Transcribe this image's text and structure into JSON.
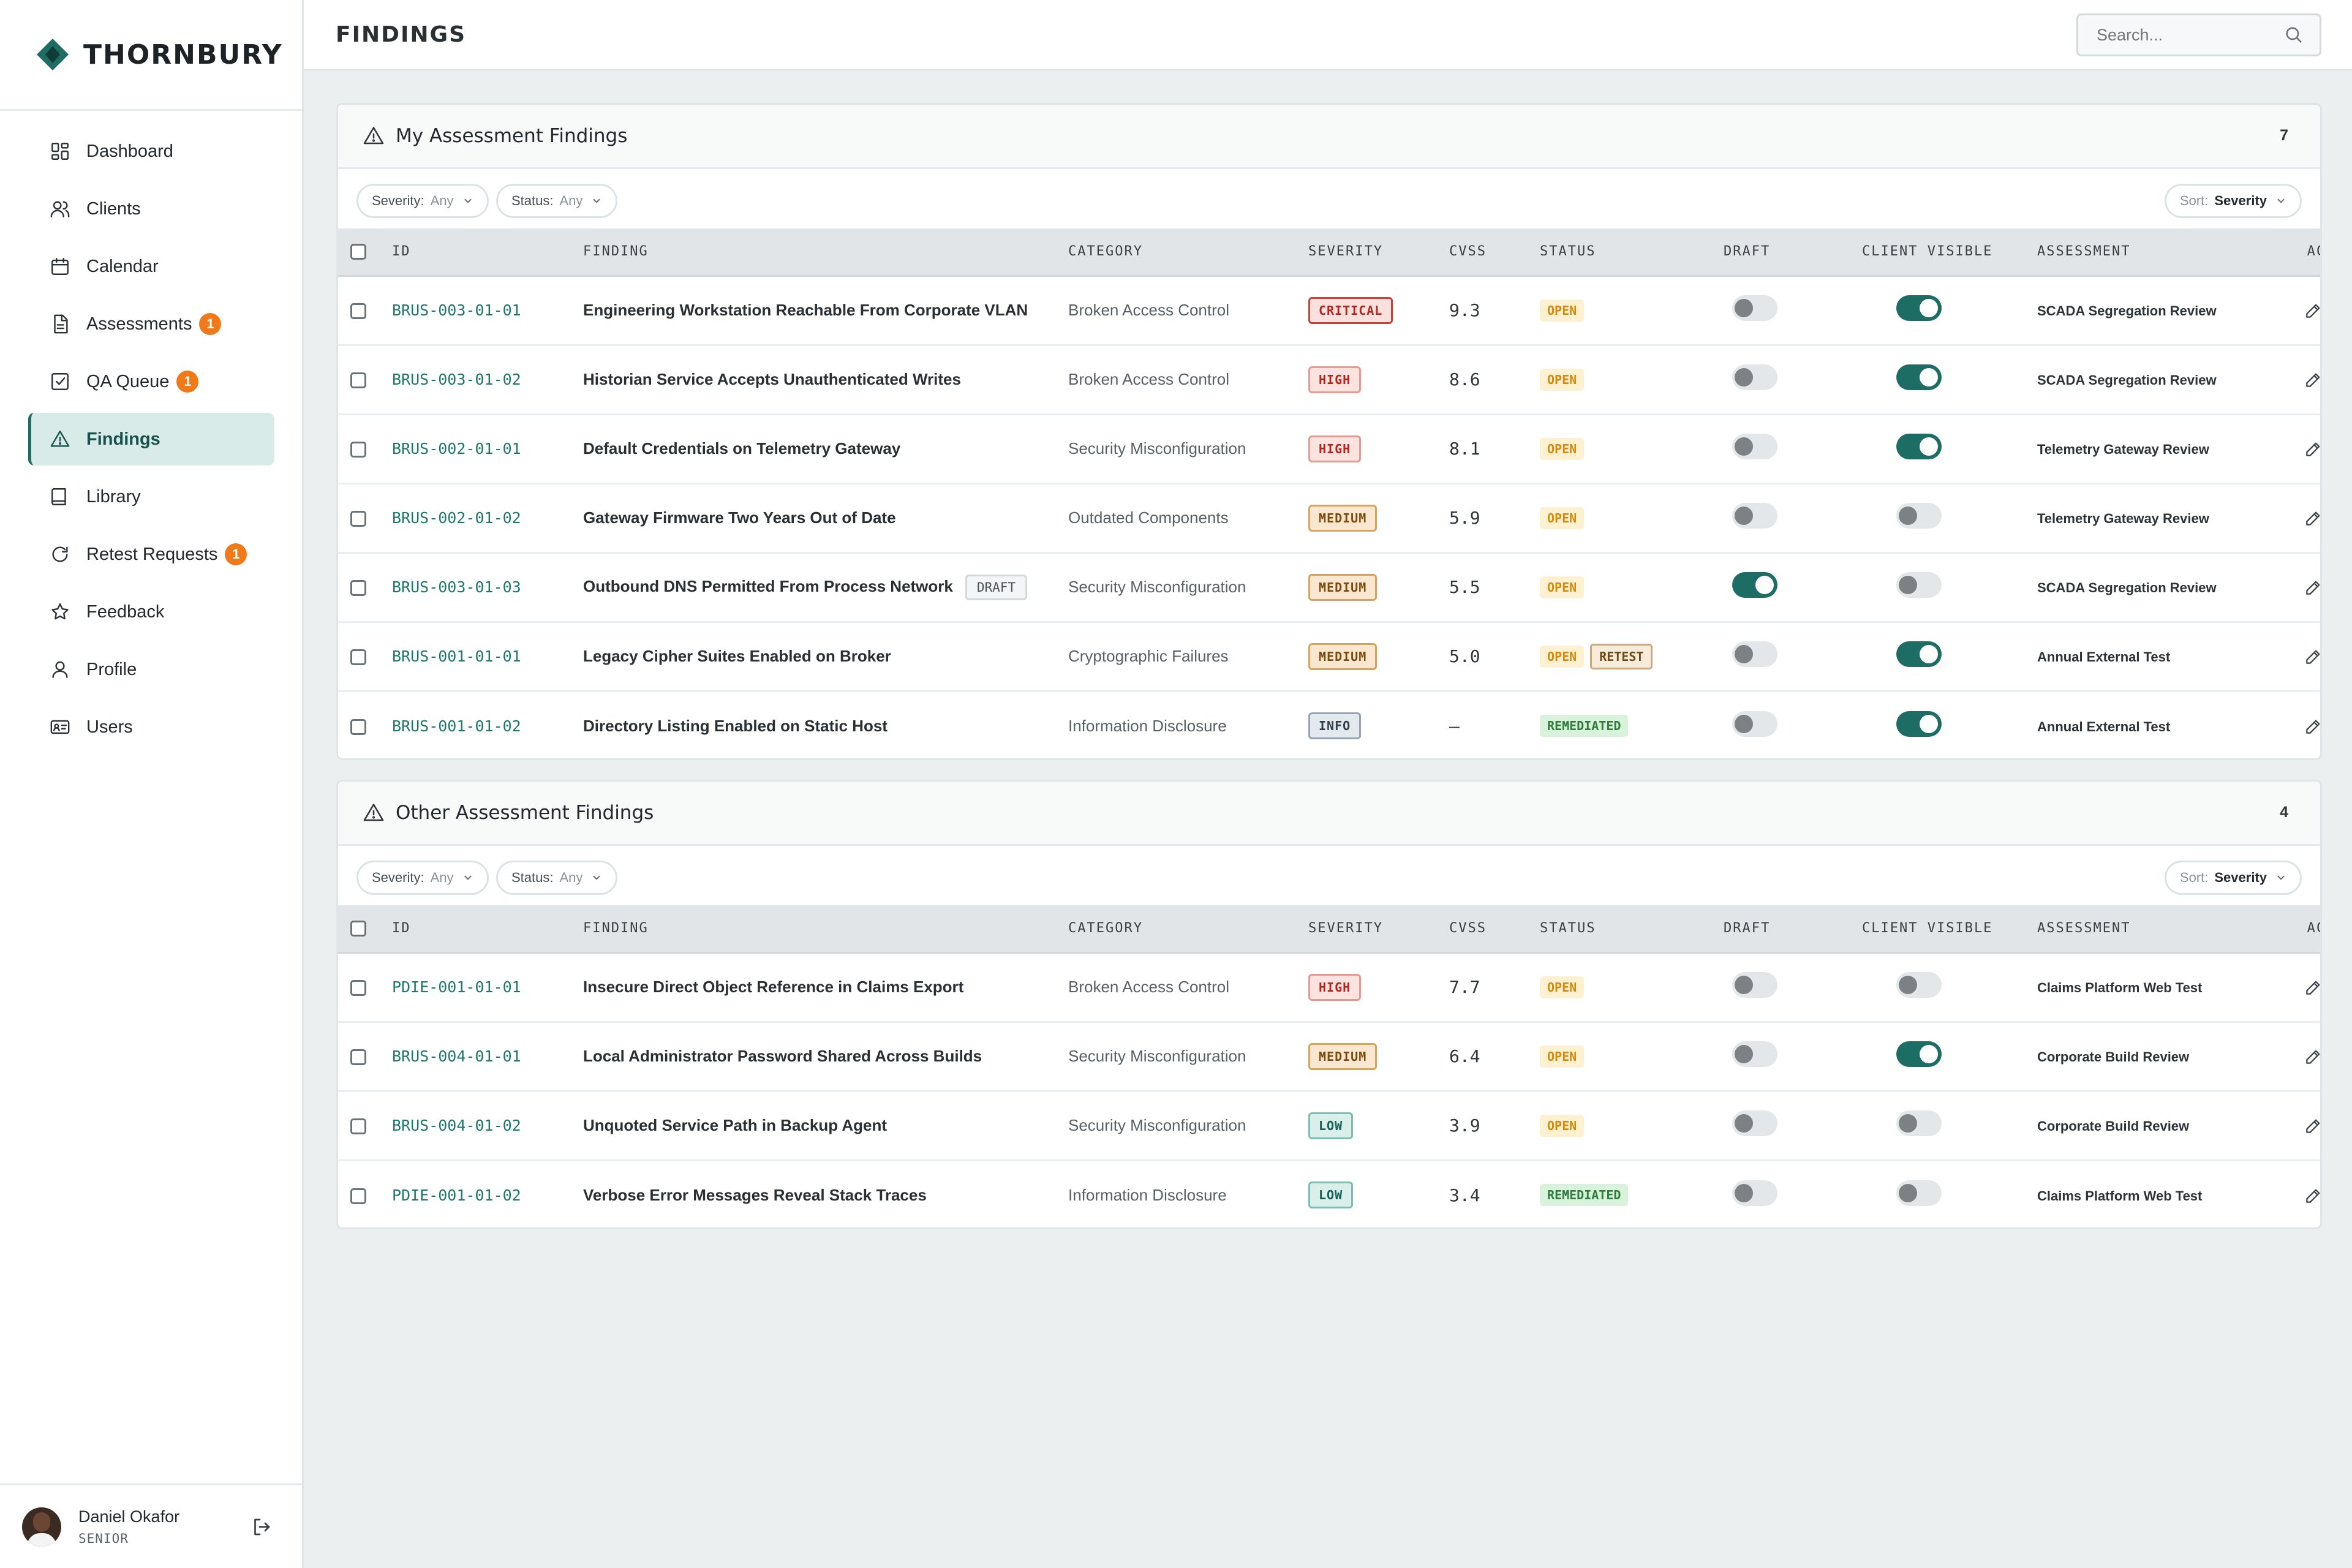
{
  "brand": {
    "name": "THORNBURY"
  },
  "nav": [
    {
      "key": "dashboard",
      "label": "Dashboard",
      "icon": "dashboard-icon",
      "badge": null,
      "active": false
    },
    {
      "key": "clients",
      "label": "Clients",
      "icon": "users-icon",
      "badge": null,
      "active": false
    },
    {
      "key": "calendar",
      "label": "Calendar",
      "icon": "calendar-icon",
      "badge": null,
      "active": false
    },
    {
      "key": "assessments",
      "label": "Assessments",
      "icon": "document-icon",
      "badge": "1",
      "active": false
    },
    {
      "key": "qa-queue",
      "label": "QA Queue",
      "icon": "checklist-icon",
      "badge": "1",
      "active": false
    },
    {
      "key": "findings",
      "label": "Findings",
      "icon": "warning-icon",
      "badge": null,
      "active": true
    },
    {
      "key": "library",
      "label": "Library",
      "icon": "book-icon",
      "badge": null,
      "active": false
    },
    {
      "key": "retest-requests",
      "label": "Retest Requests",
      "icon": "refresh-icon",
      "badge": "1",
      "active": false
    },
    {
      "key": "feedback",
      "label": "Feedback",
      "icon": "star-icon",
      "badge": null,
      "active": false
    },
    {
      "key": "profile",
      "label": "Profile",
      "icon": "person-icon",
      "badge": null,
      "active": false
    },
    {
      "key": "users",
      "label": "Users",
      "icon": "id-card-icon",
      "badge": null,
      "active": false
    }
  ],
  "user": {
    "name": "Daniel Okafor",
    "role": "SENIOR"
  },
  "header": {
    "title": "FINDINGS",
    "search_placeholder": "Search..."
  },
  "columns": [
    "ID",
    "FINDING",
    "CATEGORY",
    "SEVERITY",
    "CVSS",
    "STATUS",
    "DRAFT",
    "CLIENT VISIBLE",
    "ASSESSMENT",
    "ACTIONS"
  ],
  "filters": {
    "severity_label": "Severity:",
    "severity_value": "Any",
    "status_label": "Status:",
    "status_value": "Any",
    "sort_label": "Sort:",
    "sort_value": "Severity"
  },
  "severity_colors": {
    "CRITICAL": {
      "bg": "#fbe1de",
      "fg": "#b3261e",
      "border": "#c4453b"
    },
    "HIGH": {
      "bg": "#fde3df",
      "fg": "#b3261e",
      "border": "#e39b92"
    },
    "MEDIUM": {
      "bg": "#fbe7cf",
      "fg": "#7a4b0c",
      "border": "#d4a460"
    },
    "LOW": {
      "bg": "#d8efea",
      "fg": "#175e55",
      "border": "#7fbdb3"
    },
    "INFO": {
      "bg": "#e4e9ee",
      "fg": "#33414d",
      "border": "#95a4b0"
    }
  },
  "sections": [
    {
      "title": "My Assessment Findings",
      "count": "7",
      "rows": [
        {
          "id": "BRUS-003-01-01",
          "title": "Engineering Workstation Reachable From Corporate VLAN",
          "draft_tag": "",
          "category": "Broken Access Control",
          "severity": "CRITICAL",
          "cvss": "9.3",
          "statuses": [
            "OPEN"
          ],
          "draft": false,
          "client_visible": true,
          "assessment": "SCADA Segregation Review"
        },
        {
          "id": "BRUS-003-01-02",
          "title": "Historian Service Accepts Unauthenticated Writes",
          "draft_tag": "",
          "category": "Broken Access Control",
          "severity": "HIGH",
          "cvss": "8.6",
          "statuses": [
            "OPEN"
          ],
          "draft": false,
          "client_visible": true,
          "assessment": "SCADA Segregation Review"
        },
        {
          "id": "BRUS-002-01-01",
          "title": "Default Credentials on Telemetry Gateway",
          "draft_tag": "",
          "category": "Security Misconfiguration",
          "severity": "HIGH",
          "cvss": "8.1",
          "statuses": [
            "OPEN"
          ],
          "draft": false,
          "client_visible": true,
          "assessment": "Telemetry Gateway Review"
        },
        {
          "id": "BRUS-002-01-02",
          "title": "Gateway Firmware Two Years Out of Date",
          "draft_tag": "",
          "category": "Outdated Components",
          "severity": "MEDIUM",
          "cvss": "5.9",
          "statuses": [
            "OPEN"
          ],
          "draft": false,
          "client_visible": false,
          "assessment": "Telemetry Gateway Review"
        },
        {
          "id": "BRUS-003-01-03",
          "title": "Outbound DNS Permitted From Process Network",
          "draft_tag": "DRAFT",
          "category": "Security Misconfiguration",
          "severity": "MEDIUM",
          "cvss": "5.5",
          "statuses": [
            "OPEN"
          ],
          "draft": true,
          "client_visible": false,
          "assessment": "SCADA Segregation Review"
        },
        {
          "id": "BRUS-001-01-01",
          "title": "Legacy Cipher Suites Enabled on Broker",
          "draft_tag": "",
          "category": "Cryptographic Failures",
          "severity": "MEDIUM",
          "cvss": "5.0",
          "statuses": [
            "OPEN",
            "RETEST"
          ],
          "draft": false,
          "client_visible": true,
          "assessment": "Annual External Test"
        },
        {
          "id": "BRUS-001-01-02",
          "title": "Directory Listing Enabled on Static Host",
          "draft_tag": "",
          "category": "Information Disclosure",
          "severity": "INFO",
          "cvss": "—",
          "statuses": [
            "REMEDIATED"
          ],
          "draft": false,
          "client_visible": true,
          "assessment": "Annual External Test"
        }
      ]
    },
    {
      "title": "Other Assessment Findings",
      "count": "4",
      "rows": [
        {
          "id": "PDIE-001-01-01",
          "title": "Insecure Direct Object Reference in Claims Export",
          "draft_tag": "",
          "category": "Broken Access Control",
          "severity": "HIGH",
          "cvss": "7.7",
          "statuses": [
            "OPEN"
          ],
          "draft": false,
          "client_visible": false,
          "assessment": "Claims Platform Web Test"
        },
        {
          "id": "BRUS-004-01-01",
          "title": "Local Administrator Password Shared Across Builds",
          "draft_tag": "",
          "category": "Security Misconfiguration",
          "severity": "MEDIUM",
          "cvss": "6.4",
          "statuses": [
            "OPEN"
          ],
          "draft": false,
          "client_visible": true,
          "assessment": "Corporate Build Review"
        },
        {
          "id": "BRUS-004-01-02",
          "title": "Unquoted Service Path in Backup Agent",
          "draft_tag": "",
          "category": "Security Misconfiguration",
          "severity": "LOW",
          "cvss": "3.9",
          "statuses": [
            "OPEN"
          ],
          "draft": false,
          "client_visible": false,
          "assessment": "Corporate Build Review"
        },
        {
          "id": "PDIE-001-01-02",
          "title": "Verbose Error Messages Reveal Stack Traces",
          "draft_tag": "",
          "category": "Information Disclosure",
          "severity": "LOW",
          "cvss": "3.4",
          "statuses": [
            "REMEDIATED"
          ],
          "draft": false,
          "client_visible": false,
          "assessment": "Claims Platform Web Test"
        }
      ]
    }
  ]
}
